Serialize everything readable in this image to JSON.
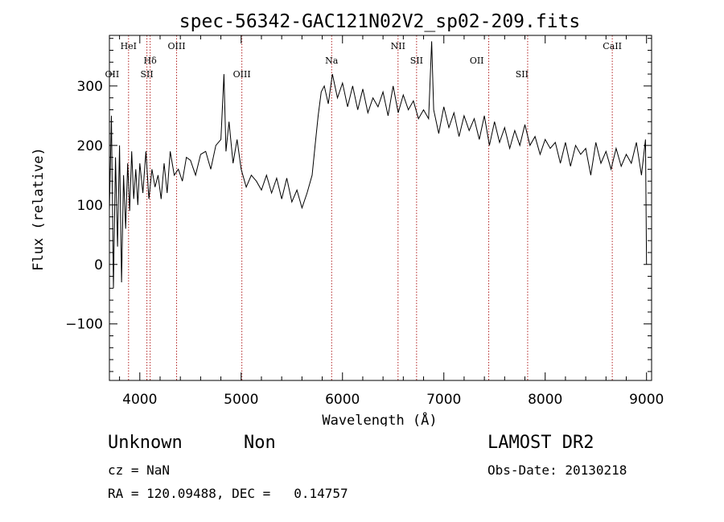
{
  "chart_data": {
    "type": "line",
    "title": "spec-56342-GAC121N02V2_sp02-209.fits",
    "xlabel": "Wavelength (Å)",
    "ylabel": "Flux (relative)",
    "xlim": [
      3700,
      9050
    ],
    "ylim": [
      -195,
      385
    ],
    "xticks": [
      4000,
      5000,
      6000,
      7000,
      8000,
      9000
    ],
    "xtick_labels": [
      "4000",
      "5000",
      "6000",
      "7000",
      "8000",
      "9000"
    ],
    "yticks": [
      -100,
      0,
      100,
      200,
      300
    ],
    "ytick_labels": [
      "−100",
      "0",
      "100",
      "200",
      "300"
    ],
    "grid": false,
    "series": [
      {
        "x": [
          3700,
          3720,
          3740,
          3760,
          3780,
          3800,
          3820,
          3840,
          3860,
          3880,
          3900,
          3920,
          3940,
          3960,
          3980,
          4000,
          4030,
          4060,
          4090,
          4120,
          4150,
          4180,
          4210,
          4240,
          4270,
          4300,
          4340,
          4380,
          4420,
          4460,
          4500,
          4550,
          4600,
          4650,
          4700,
          4750,
          4800,
          4830,
          4850,
          4880,
          4920,
          4960,
          5000,
          5050,
          5100,
          5150,
          5200,
          5250,
          5300,
          5350,
          5400,
          5450,
          5500,
          5550,
          5600,
          5650,
          5700,
          5730,
          5760,
          5790,
          5820,
          5860,
          5900,
          5950,
          6000,
          6050,
          6100,
          6150,
          6200,
          6250,
          6300,
          6350,
          6400,
          6450,
          6500,
          6550,
          6600,
          6650,
          6700,
          6750,
          6800,
          6850,
          6880,
          6900,
          6950,
          7000,
          7050,
          7100,
          7150,
          7200,
          7250,
          7300,
          7350,
          7400,
          7450,
          7500,
          7550,
          7600,
          7650,
          7700,
          7750,
          7800,
          7850,
          7900,
          7950,
          8000,
          8050,
          8100,
          8150,
          8200,
          8250,
          8300,
          8350,
          8400,
          8450,
          8500,
          8550,
          8600,
          8650,
          8700,
          8750,
          8800,
          8850,
          8900,
          8950,
          8990,
          9000
        ],
        "y": [
          90,
          250,
          -40,
          180,
          30,
          200,
          -30,
          150,
          60,
          170,
          90,
          190,
          110,
          160,
          100,
          170,
          120,
          190,
          110,
          160,
          130,
          150,
          110,
          170,
          120,
          190,
          150,
          160,
          140,
          180,
          175,
          150,
          185,
          190,
          160,
          200,
          210,
          320,
          190,
          240,
          170,
          210,
          160,
          130,
          150,
          140,
          125,
          150,
          120,
          145,
          110,
          145,
          105,
          125,
          95,
          120,
          150,
          200,
          250,
          290,
          300,
          270,
          320,
          280,
          305,
          265,
          300,
          260,
          295,
          255,
          280,
          265,
          290,
          250,
          300,
          255,
          285,
          260,
          275,
          245,
          260,
          245,
          375,
          260,
          220,
          265,
          230,
          255,
          215,
          250,
          225,
          245,
          210,
          250,
          200,
          240,
          205,
          230,
          195,
          225,
          200,
          235,
          200,
          215,
          185,
          210,
          195,
          205,
          170,
          205,
          165,
          200,
          185,
          195,
          150,
          205,
          170,
          190,
          160,
          195,
          165,
          185,
          170,
          205,
          150,
          210,
          0
        ]
      }
    ],
    "annotations": [
      {
        "label": "OII",
        "x": 3727,
        "row": 3
      },
      {
        "label": "HeI",
        "x": 3889,
        "row": 1
      },
      {
        "label": "Hδ",
        "x": 4102,
        "row": 2
      },
      {
        "label": "SII",
        "x": 4070,
        "row": 3
      },
      {
        "label": "OIII",
        "x": 4363,
        "row": 1
      },
      {
        "label": "OIII",
        "x": 5007,
        "row": 3
      },
      {
        "label": "Na",
        "x": 5893,
        "row": 2
      },
      {
        "label": "NII",
        "x": 6548,
        "row": 1
      },
      {
        "label": "SII",
        "x": 6731,
        "row": 2
      },
      {
        "label": "OII",
        "x": 7325,
        "row": 2
      },
      {
        "label": "SII",
        "x": 7771,
        "row": 3
      },
      {
        "label": "CaII",
        "x": 8662,
        "row": 1
      }
    ],
    "annotation_lines": [
      3889,
      4070,
      4102,
      4363,
      5007,
      5893,
      6548,
      6731,
      7443,
      7827,
      8662
    ],
    "colors": {
      "line": "#000000",
      "annotation_line": "#b22222",
      "text": "#000000"
    }
  },
  "footer": {
    "class": "Unknown",
    "subclass": "Non",
    "survey": "LAMOST DR2",
    "cz": "cz = NaN",
    "obs_date": "Obs-Date: 20130218",
    "radec": "RA = 120.09488, DEC =   0.14757"
  }
}
